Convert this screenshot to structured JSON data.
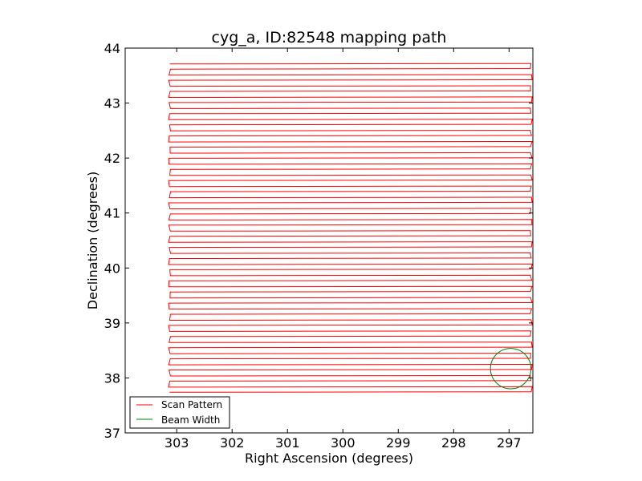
{
  "chart_data": {
    "type": "line",
    "title": "cyg_a, ID:82548 mapping path",
    "xlabel": "Right Ascension (degrees)",
    "ylabel": "Declination (degrees)",
    "xlim": [
      303.93,
      296.57
    ],
    "ylim": [
      37,
      44
    ],
    "x_inverted": true,
    "xticks": [
      303,
      302,
      301,
      300,
      299,
      298,
      297
    ],
    "yticks": [
      37,
      38,
      39,
      40,
      41,
      42,
      43,
      44
    ],
    "grid": false,
    "legend_position": "lower-left",
    "series": [
      {
        "name": "Scan Pattern",
        "color": "#ff0000",
        "pattern": "raster",
        "ra_east": 303.13,
        "ra_west": 296.6,
        "dec_start": 37.74,
        "dec_end": 43.72,
        "row_count": 60
      },
      {
        "name": "Beam Width",
        "color": "#008000",
        "pattern": "circle",
        "center_ra": 296.97,
        "center_dec": 38.17,
        "diameter_deg": 0.73
      }
    ]
  }
}
